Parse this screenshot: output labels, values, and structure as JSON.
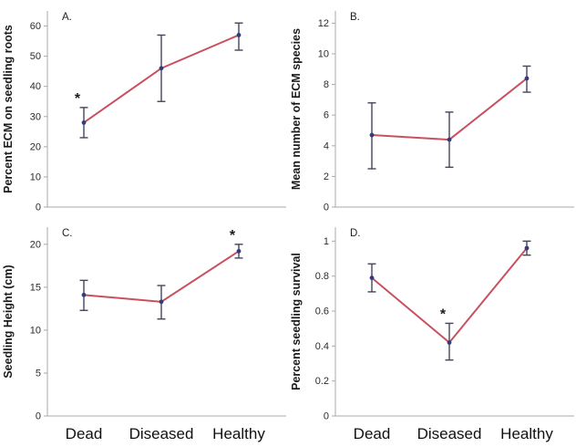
{
  "significance_marker": "*",
  "style": {
    "background": "#ffffff",
    "line_color": "#c8505f",
    "point_color": "#323c7d",
    "error_color": "#45455a",
    "axis_color": "#a9a9a9",
    "tick_label_color": "#2b2b2b",
    "axis_label_color": "#1a1a1a",
    "panel_letter_color": "#222222",
    "x_label_color": "#111111",
    "asterisk_color": "#1a1a1a"
  },
  "chart_data": [
    {
      "type": "line",
      "panel_label": "A.",
      "ylabel": "Percent ECM on seedling roots",
      "categories": [
        "Dead",
        "Diseased",
        "Healthy"
      ],
      "values": [
        28,
        46,
        57
      ],
      "err_low": [
        5,
        11,
        5
      ],
      "err_high": [
        5,
        11,
        4
      ],
      "ylim": [
        0,
        65
      ],
      "yticks": [
        0,
        10,
        20,
        30,
        40,
        50,
        60
      ],
      "asterisk_index": 0,
      "show_x_labels": false,
      "grid": false,
      "legend": "none"
    },
    {
      "type": "line",
      "panel_label": "B.",
      "ylabel": "Mean number of ECM species",
      "categories": [
        "Dead",
        "Diseased",
        "Healthy"
      ],
      "values": [
        4.7,
        4.4,
        8.4
      ],
      "err_low": [
        2.2,
        1.8,
        0.9
      ],
      "err_high": [
        2.1,
        1.8,
        0.8
      ],
      "ylim": [
        0,
        12.8
      ],
      "yticks": [
        0,
        2,
        4,
        6,
        8,
        10,
        12
      ],
      "asterisk_index": -1,
      "show_x_labels": false,
      "grid": false,
      "legend": "none"
    },
    {
      "type": "line",
      "panel_label": "C.",
      "ylabel": "Seedling Height (cm)",
      "categories": [
        "Dead",
        "Diseased",
        "Healthy"
      ],
      "values": [
        14.1,
        13.3,
        19.2
      ],
      "err_low": [
        1.8,
        2.0,
        0.8
      ],
      "err_high": [
        1.7,
        1.9,
        0.8
      ],
      "ylim": [
        0,
        22
      ],
      "yticks": [
        0,
        5,
        10,
        15,
        20
      ],
      "asterisk_index": 2,
      "show_x_labels": true,
      "grid": false,
      "legend": "none"
    },
    {
      "type": "line",
      "panel_label": "D.",
      "ylabel": "Percent seedling survival",
      "categories": [
        "Dead",
        "Diseased",
        "Healthy"
      ],
      "values": [
        0.79,
        0.42,
        0.96
      ],
      "err_low": [
        0.08,
        0.1,
        0.04
      ],
      "err_high": [
        0.08,
        0.11,
        0.04
      ],
      "ylim": [
        0,
        1.08
      ],
      "yticks": [
        0,
        0.2,
        0.4,
        0.6,
        0.8,
        1
      ],
      "asterisk_index": 1,
      "show_x_labels": true,
      "grid": false,
      "legend": "none"
    }
  ]
}
